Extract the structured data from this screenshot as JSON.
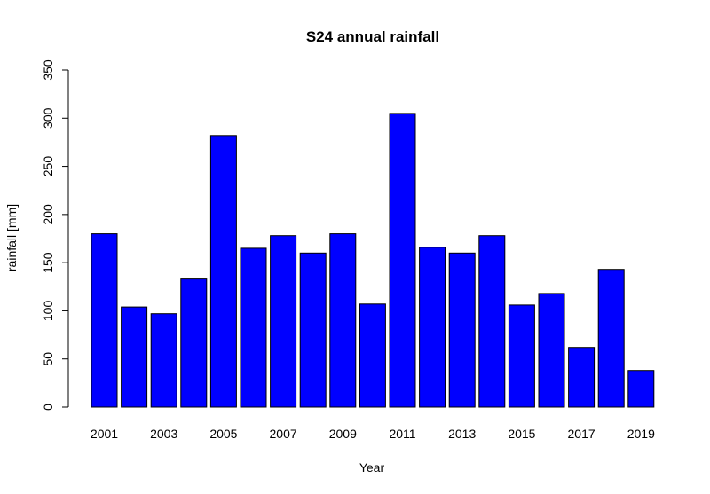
{
  "chart_data": {
    "type": "bar",
    "title": "S24 annual rainfall",
    "xlabel": "Year",
    "ylabel": "rainfall [mm]",
    "categories": [
      "2001",
      "2002",
      "2003",
      "2004",
      "2005",
      "2006",
      "2007",
      "2008",
      "2009",
      "2010",
      "2011",
      "2012",
      "2013",
      "2014",
      "2015",
      "2016",
      "2017",
      "2018",
      "2019"
    ],
    "x_tick_labels": [
      "2001",
      "2003",
      "2005",
      "2007",
      "2009",
      "2011",
      "2013",
      "2015",
      "2017",
      "2019"
    ],
    "values": [
      180,
      104,
      97,
      133,
      282,
      165,
      178,
      160,
      180,
      107,
      305,
      166,
      160,
      178,
      106,
      118,
      62,
      143,
      38
    ],
    "ylim": [
      0,
      350
    ],
    "y_ticks": [
      0,
      50,
      100,
      150,
      200,
      250,
      300,
      350
    ],
    "bar_color": "#0000ff",
    "grid": false,
    "legend": "none"
  }
}
